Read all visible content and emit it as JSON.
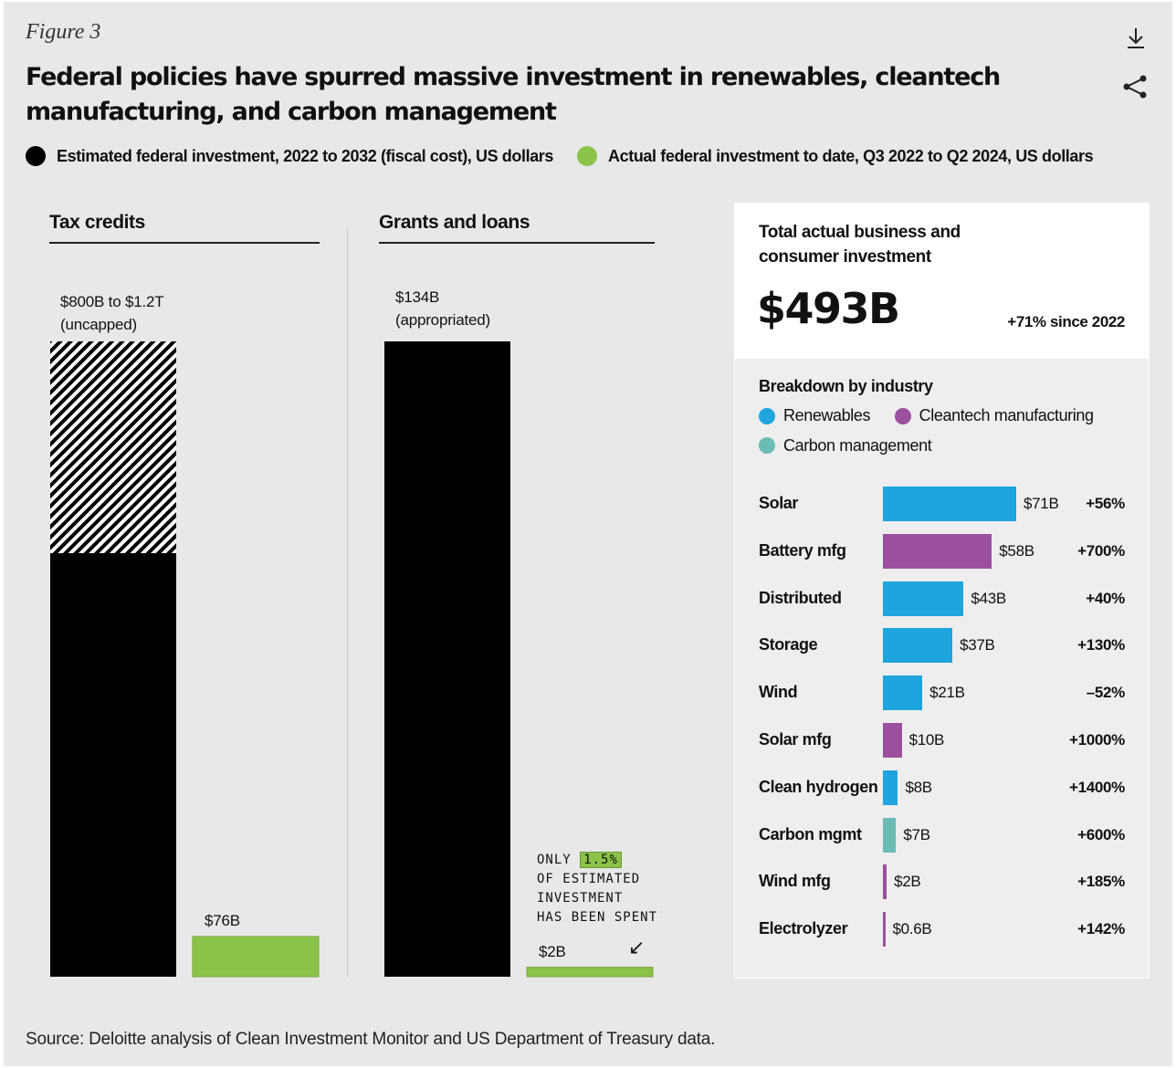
{
  "figure_label": "Figure 3",
  "title": "Federal policies have spurred massive investment in renewables, cleantech manufacturing, and carbon management",
  "icons": {
    "download": "download-icon",
    "share": "share-icon"
  },
  "colors": {
    "estimated": "#000000",
    "actual": "#8bc34a",
    "renewables": "#1ea5de",
    "cleantech": "#9b4f9e",
    "carbon": "#6cbcb6"
  },
  "legend": {
    "estimated": "Estimated federal investment, 2022 to 2032 (fiscal cost), US dollars",
    "actual": "Actual federal investment to date, Q3 2022 to Q2 2024, US dollars"
  },
  "chart_data": [
    {
      "type": "bar",
      "title": "Tax credits",
      "categories": [
        "Estimated federal investment",
        "Actual federal investment to date"
      ],
      "estimated_label_line1": "$800B to $1.2T",
      "estimated_label_line2": "(uncapped)",
      "estimated_range": [
        800,
        1200
      ],
      "actual_label": "$76B",
      "actual_value": 76,
      "units": "US$ billions"
    },
    {
      "type": "bar",
      "title": "Grants and loans",
      "categories": [
        "Estimated federal investment",
        "Actual federal investment to date"
      ],
      "estimated_label_line1": "$134B",
      "estimated_label_line2": "(appropriated)",
      "estimated_value": 134,
      "actual_label": "$2B",
      "actual_value": 2,
      "annotation": {
        "line1_pre": "ONLY",
        "line1_highlight": "1.5%",
        "line2": "OF ESTIMATED",
        "line3": "INVESTMENT",
        "line4": "HAS BEEN SPENT",
        "arrow": "↙"
      },
      "units": "US$ billions"
    },
    {
      "type": "bar",
      "title": "Breakdown by industry",
      "total_title": "Total actual business and consumer investment",
      "total_value": "$493B",
      "total_change": "+71% since 2022",
      "legend": [
        "Renewables",
        "Cleantech manufacturing",
        "Carbon management"
      ],
      "categories": [
        "Solar",
        "Battery mfg",
        "Distributed",
        "Storage",
        "Wind",
        "Solar mfg",
        "Clean hydrogen",
        "Carbon mgmt",
        "Wind mfg",
        "Electrolyzer"
      ],
      "values": [
        71,
        58,
        43,
        37,
        21,
        10,
        8,
        7,
        2,
        0.6
      ],
      "value_labels": [
        "$71B",
        "$58B",
        "$43B",
        "$37B",
        "$21B",
        "$10B",
        "$8B",
        "$7B",
        "$2B",
        "$0.6B"
      ],
      "change_labels": [
        "+56%",
        "+700%",
        "+40%",
        "+130%",
        "–52%",
        "+1000%",
        "+1400%",
        "+600%",
        "+185%",
        "+142%"
      ],
      "groups": [
        "renewables",
        "cleantech",
        "renewables",
        "renewables",
        "renewables",
        "cleantech",
        "renewables",
        "carbon",
        "cleantech",
        "cleantech"
      ],
      "units": "US$ billions",
      "xlim": [
        0,
        71
      ]
    }
  ],
  "source": "Source: Deloitte analysis of Clean Investment Monitor and US Department of Treasury data."
}
